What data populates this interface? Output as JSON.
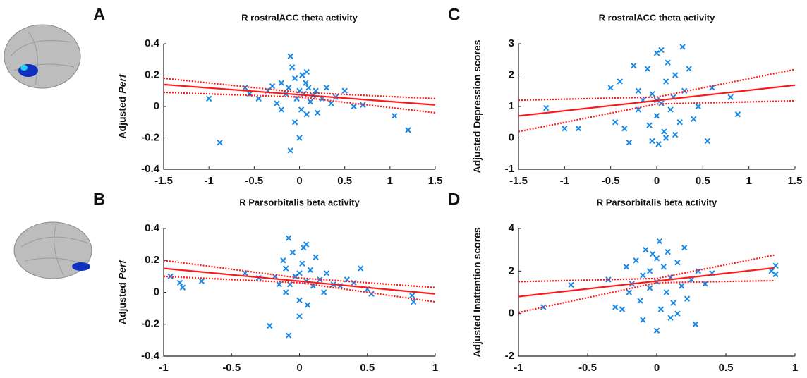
{
  "chart_data": [
    {
      "type": "scatter",
      "panel": "A",
      "title": "R rostralACC theta activity",
      "ylabel": {
        "text": "Adjusted",
        "italic": "Perf"
      },
      "xlim": [
        -1.5,
        1.5
      ],
      "xticks": [
        -1.5,
        -1,
        -0.5,
        0,
        0.5,
        1,
        1.5
      ],
      "ylim": [
        -0.4,
        0.4
      ],
      "yticks": [
        -0.4,
        -0.2,
        0,
        0.2,
        0.4
      ],
      "points": {
        "color": "#1a8ae6",
        "x": [
          -1.0,
          -0.88,
          -0.6,
          -0.55,
          -0.45,
          -0.35,
          -0.3,
          -0.25,
          -0.2,
          -0.15,
          -0.12,
          -0.1,
          -0.08,
          -0.05,
          -0.03,
          0,
          0.02,
          0.03,
          0.05,
          0.07,
          0.08,
          0.1,
          0.12,
          0.15,
          0.18,
          0.2,
          0.25,
          0.3,
          0.35,
          0.4,
          0.5,
          0.6,
          0.7,
          1.05,
          1.2,
          -0.1,
          0.0,
          -0.05,
          0.08,
          -0.2
        ],
        "y": [
          0.05,
          -0.23,
          0.12,
          0.08,
          0.05,
          0.1,
          0.13,
          0.02,
          0.15,
          0.08,
          0.12,
          0.32,
          0.25,
          0.18,
          0.05,
          0.1,
          -0.02,
          0.2,
          0.08,
          0.15,
          -0.05,
          0.12,
          0.03,
          0.07,
          0.1,
          -0.04,
          0.05,
          0.12,
          0.02,
          0.06,
          0.1,
          0.0,
          0.01,
          -0.06,
          -0.15,
          -0.28,
          -0.2,
          -0.1,
          0.22,
          -0.02
        ]
      },
      "fit": {
        "color": "#ff1a1a",
        "x": [
          -1.5,
          1.5
        ],
        "values": [
          0.14,
          0.01
        ]
      },
      "ci_upper": {
        "color": "#ff1a1a",
        "x": [
          -1.5,
          0,
          1.5
        ],
        "values": [
          0.18,
          0.09,
          0.05
        ]
      },
      "ci_lower": {
        "color": "#ff1a1a",
        "x": [
          -1.5,
          0,
          1.5
        ],
        "values": [
          0.09,
          0.06,
          -0.04
        ]
      }
    },
    {
      "type": "scatter",
      "panel": "B",
      "title": "R Parsorbitalis beta activity",
      "ylabel": {
        "text": "Adjusted",
        "italic": "Perf"
      },
      "xlim": [
        -1,
        1
      ],
      "xticks": [
        -1,
        -0.5,
        0,
        0.5,
        1
      ],
      "ylim": [
        -0.4,
        0.4
      ],
      "yticks": [
        -0.4,
        -0.2,
        0,
        0.2,
        0.4
      ],
      "points": {
        "color": "#1a8ae6",
        "x": [
          -0.95,
          -0.88,
          -0.86,
          -0.72,
          -0.4,
          -0.3,
          -0.22,
          -0.18,
          -0.12,
          -0.1,
          -0.08,
          -0.07,
          -0.05,
          -0.03,
          0,
          0,
          0.02,
          0.03,
          0.05,
          0.06,
          0.08,
          0.1,
          0.12,
          0.15,
          0.18,
          0.2,
          0.25,
          0.3,
          0.35,
          0.4,
          0.45,
          0.5,
          0.53,
          0.83,
          0.84,
          -0.08,
          0.0,
          -0.1,
          0.05,
          -0.15
        ],
        "y": [
          0.1,
          0.06,
          0.03,
          0.07,
          0.12,
          0.09,
          -0.21,
          0.1,
          0.2,
          0.15,
          0.34,
          0.05,
          0.25,
          0.1,
          0.12,
          -0.05,
          0.18,
          0.28,
          0.07,
          -0.08,
          0.14,
          0.04,
          0.22,
          0.08,
          0.0,
          0.12,
          0.05,
          0.04,
          0.08,
          0.06,
          0.15,
          0.02,
          -0.01,
          -0.02,
          -0.06,
          -0.27,
          -0.15,
          0.0,
          0.3,
          0.05
        ]
      },
      "fit": {
        "color": "#ff1a1a",
        "x": [
          -1,
          1
        ],
        "values": [
          0.15,
          -0.01
        ]
      },
      "ci_upper": {
        "color": "#ff1a1a",
        "x": [
          -1,
          0,
          1
        ],
        "values": [
          0.2,
          0.09,
          0.03
        ]
      },
      "ci_lower": {
        "color": "#ff1a1a",
        "x": [
          -1,
          0,
          1
        ],
        "values": [
          0.1,
          0.06,
          -0.06
        ]
      }
    },
    {
      "type": "scatter",
      "panel": "C",
      "title": "R rostralACC theta activity",
      "ylabel": {
        "text": "Adjusted Depression scores"
      },
      "xlim": [
        -1.5,
        1.5
      ],
      "xticks": [
        -1.5,
        -1,
        -0.5,
        0,
        0.5,
        1,
        1.5
      ],
      "ylim": [
        -1,
        3
      ],
      "yticks": [
        -1,
        0,
        1,
        2,
        3
      ],
      "points": {
        "color": "#1a8ae6",
        "x": [
          -1.2,
          -1,
          -0.85,
          -0.5,
          -0.45,
          -0.4,
          -0.35,
          -0.3,
          -0.25,
          -0.2,
          -0.15,
          -0.1,
          -0.08,
          -0.05,
          0,
          0,
          0.02,
          0.05,
          0.05,
          0.08,
          0.1,
          0.12,
          0.15,
          0.18,
          0.2,
          0.25,
          0.28,
          0.3,
          0.35,
          0.4,
          0.45,
          0.55,
          0.6,
          0.8,
          0.88,
          -0.05,
          0.1,
          -0.2,
          0.0,
          0.2
        ],
        "y": [
          0.95,
          0.3,
          0.3,
          1.6,
          0.5,
          1.8,
          0.3,
          -0.15,
          2.3,
          0.9,
          1.2,
          2.2,
          0.4,
          1.4,
          2.7,
          0.7,
          -0.2,
          1.1,
          2.8,
          0.2,
          1.8,
          2.4,
          0.9,
          1.3,
          2.0,
          0.5,
          2.9,
          1.5,
          2.2,
          0.6,
          1.0,
          -0.1,
          1.6,
          1.3,
          0.75,
          -0.1,
          0.0,
          1.5,
          1.2,
          0.1
        ]
      },
      "fit": {
        "color": "#ff1a1a",
        "x": [
          -1.5,
          1.5
        ],
        "values": [
          0.7,
          1.68
        ]
      },
      "ci_upper": {
        "color": "#ff1a1a",
        "x": [
          -1.5,
          0,
          1.5
        ],
        "values": [
          1.2,
          1.3,
          2.18
        ]
      },
      "ci_lower": {
        "color": "#ff1a1a",
        "x": [
          -1.5,
          0,
          1.5
        ],
        "values": [
          0.2,
          1.08,
          1.18
        ]
      }
    },
    {
      "type": "scatter",
      "panel": "D",
      "title": "R Parsorbitalis beta activity",
      "ylabel": {
        "text": "Adjusted Inattention scores"
      },
      "xlim": [
        -1,
        1
      ],
      "xticks": [
        -1,
        -0.5,
        0,
        0.5,
        1
      ],
      "ylim": [
        -2,
        4
      ],
      "yticks": [
        -2,
        0,
        2,
        4
      ],
      "points": {
        "color": "#1a8ae6",
        "x": [
          -0.82,
          -0.62,
          -0.35,
          -0.3,
          -0.25,
          -0.22,
          -0.2,
          -0.15,
          -0.12,
          -0.1,
          -0.08,
          -0.05,
          -0.03,
          0,
          0,
          0.02,
          0.03,
          0.05,
          0.07,
          0.08,
          0.1,
          0.12,
          0.15,
          0.18,
          0.2,
          0.22,
          0.25,
          0.28,
          0.3,
          0.35,
          0.4,
          0.83,
          0.86,
          0.86,
          -0.1,
          0.1,
          -0.05,
          0.15,
          0.0,
          -0.18
        ],
        "y": [
          0.3,
          1.35,
          1.6,
          0.3,
          0.2,
          2.2,
          1.0,
          2.5,
          0.6,
          1.8,
          3.0,
          1.2,
          2.8,
          -0.8,
          1.5,
          3.4,
          0.2,
          2.2,
          1.0,
          2.9,
          1.7,
          0.5,
          2.4,
          1.3,
          3.1,
          0.7,
          1.6,
          -0.5,
          2.0,
          1.4,
          1.9,
          2.0,
          1.85,
          2.25,
          -0.3,
          -0.2,
          2.0,
          0.0,
          2.6,
          1.4
        ]
      },
      "fit": {
        "color": "#ff1a1a",
        "x": [
          -1,
          0.85
        ],
        "values": [
          0.8,
          2.15
        ]
      },
      "ci_upper": {
        "color": "#ff1a1a",
        "x": [
          -1,
          0,
          0.85
        ],
        "values": [
          1.5,
          1.65,
          2.75
        ]
      },
      "ci_lower": {
        "color": "#ff1a1a",
        "x": [
          -1,
          0,
          0.85
        ],
        "values": [
          0.05,
          1.45,
          1.55
        ]
      }
    }
  ]
}
